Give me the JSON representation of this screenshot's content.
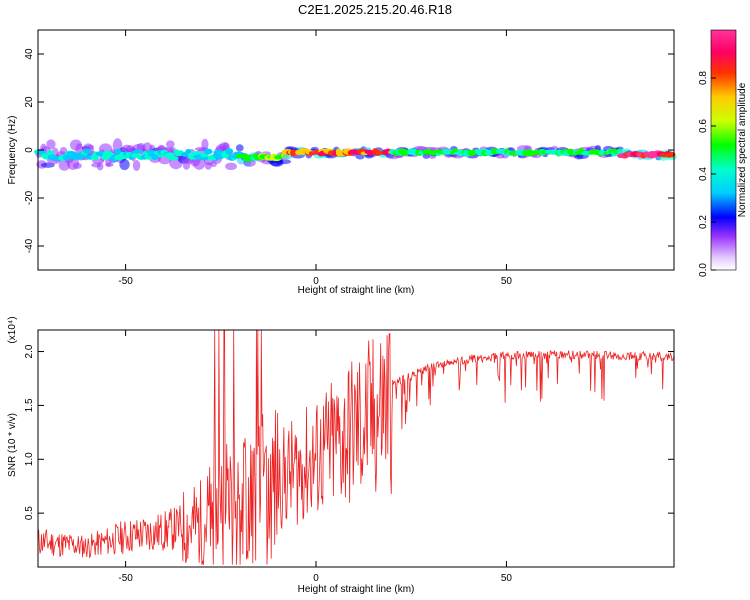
{
  "title": "C2E1.2025.215.20.46.R18",
  "chart_data": [
    {
      "type": "heatmap",
      "title": "C2E1.2025.215.20.46.R18",
      "xlabel": "Height of straight line (km)",
      "ylabel": "Frequency (Hz)",
      "xlim": [
        -73,
        94
      ],
      "ylim": [
        -50,
        50
      ],
      "x_ticks": [
        -50,
        0,
        50
      ],
      "y_ticks": [
        -40,
        -20,
        0,
        20,
        40
      ],
      "grid": false,
      "description_series": [
        {
          "x_range": [
            -73,
            -20
          ],
          "freq_center": -2,
          "freq_spread": 6,
          "amplitude": 0.35
        },
        {
          "x_range": [
            -20,
            -8
          ],
          "freq_center": -3,
          "freq_spread": 3,
          "amplitude": 0.55
        },
        {
          "x_range": [
            -8,
            20
          ],
          "freq_center": -1,
          "freq_spread": 2,
          "amplitude": 0.85
        },
        {
          "x_range": [
            20,
            80
          ],
          "freq_center": -1,
          "freq_spread": 2,
          "amplitude": 0.45
        },
        {
          "x_range": [
            80,
            94
          ],
          "freq_center": -2,
          "freq_spread": 2,
          "amplitude": 0.95
        }
      ],
      "colorbar": {
        "label": "Normalized spectral amplitude",
        "ticks": [
          0.0,
          0.2,
          0.4,
          0.6,
          0.8
        ],
        "range": [
          0,
          1
        ]
      }
    },
    {
      "type": "line",
      "xlabel": "Height of straight line (km)",
      "ylabel": "SNR (10 * v/v)",
      "y_multiplier": "(x10⁴)",
      "xlim": [
        -73,
        94
      ],
      "ylim": [
        0,
        2.2
      ],
      "x_ticks": [
        -50,
        0,
        50
      ],
      "y_ticks": [
        0.5,
        1.0,
        1.5,
        2.0
      ],
      "y_tick_labels": [
        "0.5",
        "1.0",
        "1.5",
        "2.0"
      ],
      "series": [
        {
          "color": "#ee2222",
          "envelope_x": [
            -73,
            -60,
            -50,
            -40,
            -30,
            -25,
            -20,
            -15,
            -10,
            -5,
            0,
            5,
            10,
            15,
            20,
            30,
            40,
            50,
            60,
            70,
            80,
            90,
            94
          ],
          "envelope_y": [
            0.25,
            0.2,
            0.3,
            0.35,
            0.45,
            0.65,
            0.7,
            0.75,
            0.85,
            0.95,
            1.05,
            1.2,
            1.35,
            1.45,
            1.7,
            1.85,
            1.93,
            1.96,
            1.97,
            1.97,
            1.96,
            1.96,
            1.95
          ]
        }
      ]
    }
  ]
}
